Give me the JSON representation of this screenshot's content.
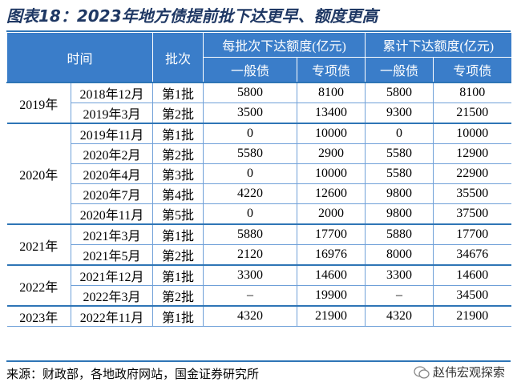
{
  "title": "图表18：2023年地方债提前批下达更早、额度更高",
  "table": {
    "header": {
      "time": "时间",
      "batch": "批次",
      "per_batch": "每批次下达额度(亿元)",
      "cumulative": "累计下达额度(亿元)",
      "general": "一般债",
      "special": "专项债"
    },
    "groups": [
      {
        "year": "2019年",
        "rows": [
          [
            "2018年12月",
            "第1批",
            5800,
            8100,
            5800,
            8100
          ],
          [
            "2019年3月",
            "第2批",
            3500,
            13400,
            9300,
            21500
          ]
        ]
      },
      {
        "year": "2020年",
        "rows": [
          [
            "2019年11月",
            "第1批",
            0,
            10000,
            0,
            10000
          ],
          [
            "2020年2月",
            "第2批",
            5580,
            2900,
            5580,
            12900
          ],
          [
            "2020年4月",
            "第3批",
            0,
            10000,
            5580,
            22900
          ],
          [
            "2020年7月",
            "第4批",
            4220,
            12600,
            9800,
            35500
          ],
          [
            "2020年11月",
            "第5批",
            0,
            2000,
            9800,
            37500
          ]
        ]
      },
      {
        "year": "2021年",
        "rows": [
          [
            "2021年3月",
            "第1批",
            5880,
            17700,
            5880,
            17700
          ],
          [
            "2021年5月",
            "第2批",
            2120,
            16976,
            8000,
            34676
          ]
        ]
      },
      {
        "year": "2022年",
        "rows": [
          [
            "2021年12月",
            "第1批",
            3300,
            14600,
            3300,
            14600
          ],
          [
            "2022年3月",
            "第2批",
            "–",
            19900,
            "–",
            34500
          ]
        ]
      },
      {
        "year": "2023年",
        "rows": [
          [
            "2022年11月",
            "第1批",
            4320,
            21900,
            4320,
            21900
          ]
        ]
      }
    ]
  },
  "source": "来源：财政部，各地政府网站，国金证券研究所",
  "watermark": "赵伟宏观探索"
}
